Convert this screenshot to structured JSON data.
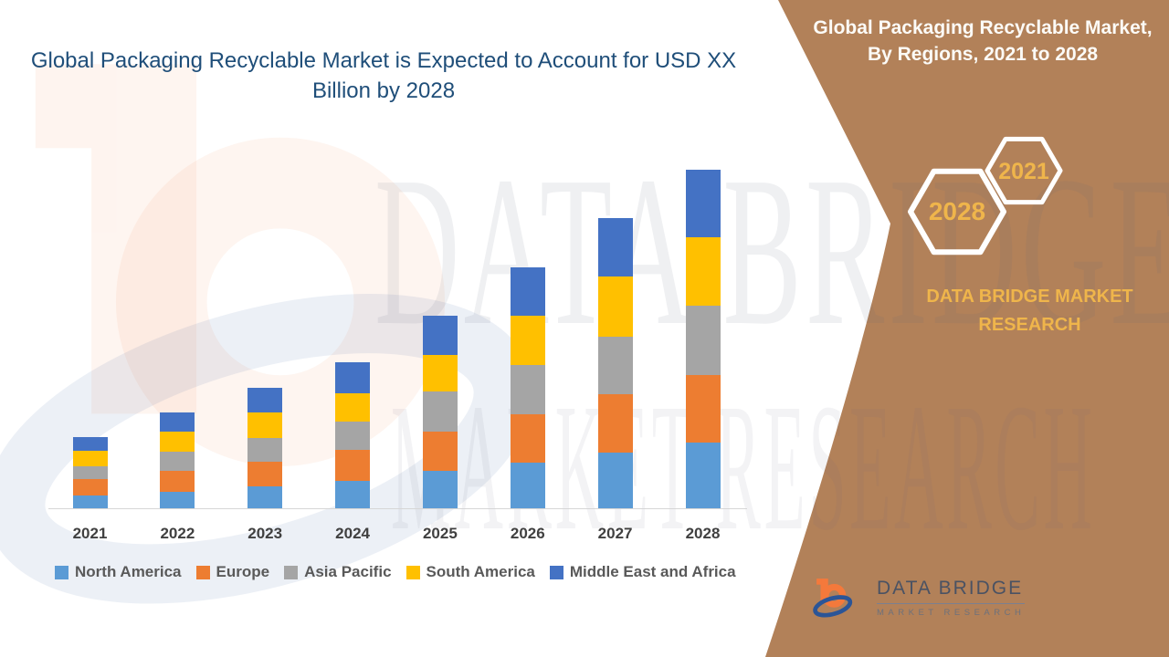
{
  "page": {
    "background": "#FFFFFF",
    "accent_brown": "#B28159",
    "accent_gold": "#EFB54B",
    "title_navy": "#1F4E79"
  },
  "main_title": {
    "text": "Global Packaging Recyclable Market is Expected to Account for USD XX Billion by 2028"
  },
  "side_panel": {
    "title": "Global Packaging Recyclable Market, By Regions, 2021 to 2028",
    "badge_back": "2028",
    "badge_front": "2021",
    "brand": "DATA BRIDGE MARKET RESEARCH"
  },
  "watermark": {
    "line1": "DATA BRIDGE",
    "line2": "MARKET RESEARCH"
  },
  "footer_logo": {
    "name": "DATA BRIDGE",
    "subtitle": "MARKET RESEARCH"
  },
  "chart_data": {
    "type": "bar",
    "stacked": true,
    "title": "Global Packaging Recyclable Market is Expected to Account for USD XX Billion by 2028",
    "xlabel": "",
    "ylabel": "",
    "grid": false,
    "y_axis_visible": false,
    "legend_position": "bottom",
    "categories": [
      "2021",
      "2022",
      "2023",
      "2024",
      "2025",
      "2026",
      "2027",
      "2028"
    ],
    "series": [
      {
        "name": "North America",
        "color": "#5B9BD5",
        "values": [
          15,
          19,
          25,
          31,
          42,
          51,
          62,
          73
        ]
      },
      {
        "name": "Europe",
        "color": "#ED7D31",
        "values": [
          18,
          23,
          27,
          34,
          43,
          53,
          64,
          74
        ]
      },
      {
        "name": "Asia Pacific",
        "color": "#A5A5A5",
        "values": [
          14,
          21,
          26,
          31,
          44,
          54,
          63,
          76
        ]
      },
      {
        "name": "South America",
        "color": "#FFC000",
        "values": [
          17,
          22,
          28,
          31,
          40,
          54,
          66,
          75
        ]
      },
      {
        "name": "Middle East and Africa",
        "color": "#4472C4",
        "values": [
          15,
          21,
          27,
          34,
          43,
          53,
          64,
          74
        ]
      }
    ],
    "totals": [
      79,
      106,
      133,
      161,
      212,
      265,
      319,
      372
    ]
  }
}
